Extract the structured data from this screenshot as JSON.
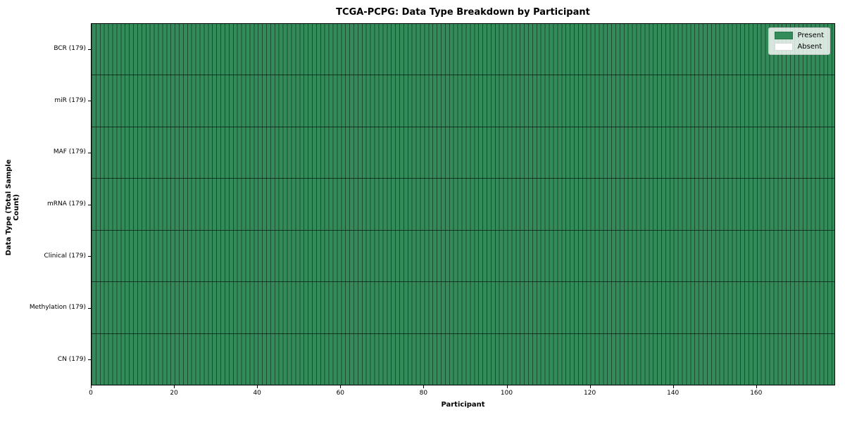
{
  "chart_data": {
    "type": "heatmap",
    "title": "TCGA-PCPG: Data Type Breakdown by Participant",
    "xlabel": "Participant",
    "ylabel": "Data Type (Total Sample Count)",
    "n_participants": 179,
    "x_ticks": [
      0,
      20,
      40,
      60,
      80,
      100,
      120,
      140,
      160
    ],
    "rows": [
      {
        "label": "BCR (179)",
        "data_type": "BCR",
        "total_samples": 179,
        "present_count": 179,
        "absent_count": 0
      },
      {
        "label": "miR (179)",
        "data_type": "miR",
        "total_samples": 179,
        "present_count": 179,
        "absent_count": 0
      },
      {
        "label": "MAF (179)",
        "data_type": "MAF",
        "total_samples": 179,
        "present_count": 179,
        "absent_count": 0
      },
      {
        "label": "mRNA (179)",
        "data_type": "mRNA",
        "total_samples": 179,
        "present_count": 179,
        "absent_count": 0
      },
      {
        "label": "Clinical (179)",
        "data_type": "Clinical",
        "total_samples": 179,
        "present_count": 179,
        "absent_count": 0
      },
      {
        "label": "Methylation (179)",
        "data_type": "Methylation",
        "total_samples": 179,
        "present_count": 179,
        "absent_count": 0
      },
      {
        "label": "CN (179)",
        "data_type": "CN",
        "total_samples": 179,
        "present_count": 179,
        "absent_count": 0
      }
    ],
    "legend": [
      {
        "label": "Present",
        "color": "#338b59"
      },
      {
        "label": "Absent",
        "color": "#ffffff"
      }
    ],
    "colors": {
      "present": "#338b59",
      "absent": "#ffffff",
      "cell_grid_line": "rgba(0,0,0,0.45)",
      "row_separator": "rgba(0,0,0,0.6)",
      "axis_spine": "#000000"
    },
    "legend_position": "upper right",
    "grid": "cell-borders"
  }
}
